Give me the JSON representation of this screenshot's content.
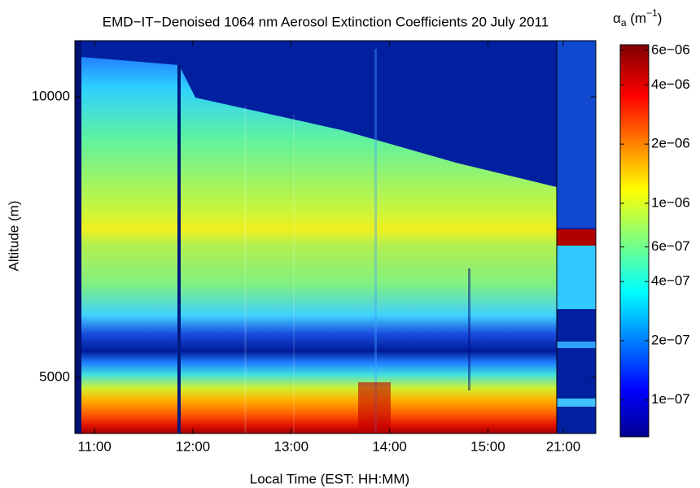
{
  "chart_data": {
    "type": "heatmap",
    "title": "EMD−IT−Denoised 1064 nm Aerosol Extinction Coefficients 20 July 2011",
    "x_label": "Local Time (EST: HH:MM)",
    "y_label": "Altitude (m)",
    "ylim": [
      4000,
      11000
    ],
    "yticks": [
      5000,
      10000
    ],
    "x_segments": [
      {
        "xlim": [
          10.8,
          15.7
        ],
        "xticks": [
          {
            "value": 11,
            "label": "11:00"
          },
          {
            "value": 12,
            "label": "12:00"
          },
          {
            "value": 13,
            "label": "13:00"
          },
          {
            "value": 14,
            "label": "14:00"
          },
          {
            "value": 15,
            "label": "15:00"
          }
        ]
      },
      {
        "xlim": [
          20.9,
          21.5
        ],
        "xticks": [
          {
            "value": 21,
            "label": "21:00"
          }
        ]
      }
    ],
    "colorbar_label_parts": [
      "α",
      "a",
      " (m",
      "−1",
      ")"
    ],
    "colorbar_log": true,
    "clim": [
      6.5e-08,
      6.4e-06
    ],
    "cticks": [
      {
        "value": 6e-06,
        "label": "6e−06"
      },
      {
        "value": 4e-06,
        "label": "4e−06"
      },
      {
        "value": 2e-06,
        "label": "2e−06"
      },
      {
        "value": 1e-06,
        "label": "1e−06"
      },
      {
        "value": 6e-07,
        "label": "6e−07"
      },
      {
        "value": 4e-07,
        "label": "4e−07"
      },
      {
        "value": 2e-07,
        "label": "2e−07"
      },
      {
        "value": 1e-07,
        "label": "1e−07"
      }
    ]
  }
}
